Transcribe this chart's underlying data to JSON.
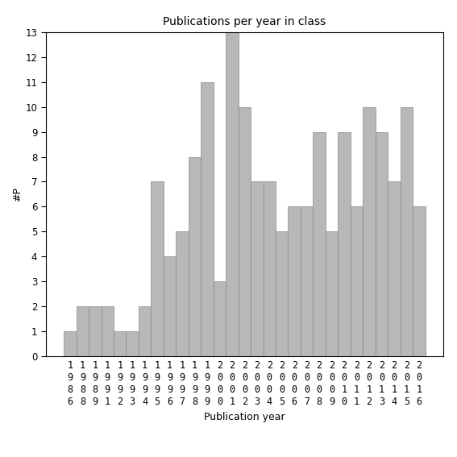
{
  "title": "Publications per year in class",
  "xlabel": "Publication year",
  "ylabel": "#P",
  "categories": [
    "1986",
    "1988",
    "1989",
    "1991",
    "1992",
    "1993",
    "1994",
    "1995",
    "1996",
    "1997",
    "1998",
    "1999",
    "2000",
    "2001",
    "2002",
    "2003",
    "2004",
    "2005",
    "2006",
    "2007",
    "2008",
    "2009",
    "2010",
    "2011",
    "2012",
    "2013",
    "2014",
    "2015",
    "2016"
  ],
  "values": [
    1,
    2,
    2,
    2,
    1,
    1,
    2,
    7,
    4,
    5,
    8,
    11,
    3,
    13,
    10,
    7,
    7,
    5,
    6,
    6,
    9,
    5,
    9,
    6,
    10,
    9,
    7,
    10,
    6
  ],
  "bar_color": "#b8b8b8",
  "bar_edge_color": "#888888",
  "background_color": "#ffffff",
  "ylim": [
    0,
    13
  ],
  "yticks": [
    0,
    1,
    2,
    3,
    4,
    5,
    6,
    7,
    8,
    9,
    10,
    11,
    12,
    13
  ],
  "title_fontsize": 10,
  "label_fontsize": 9,
  "tick_fontsize": 8.5
}
